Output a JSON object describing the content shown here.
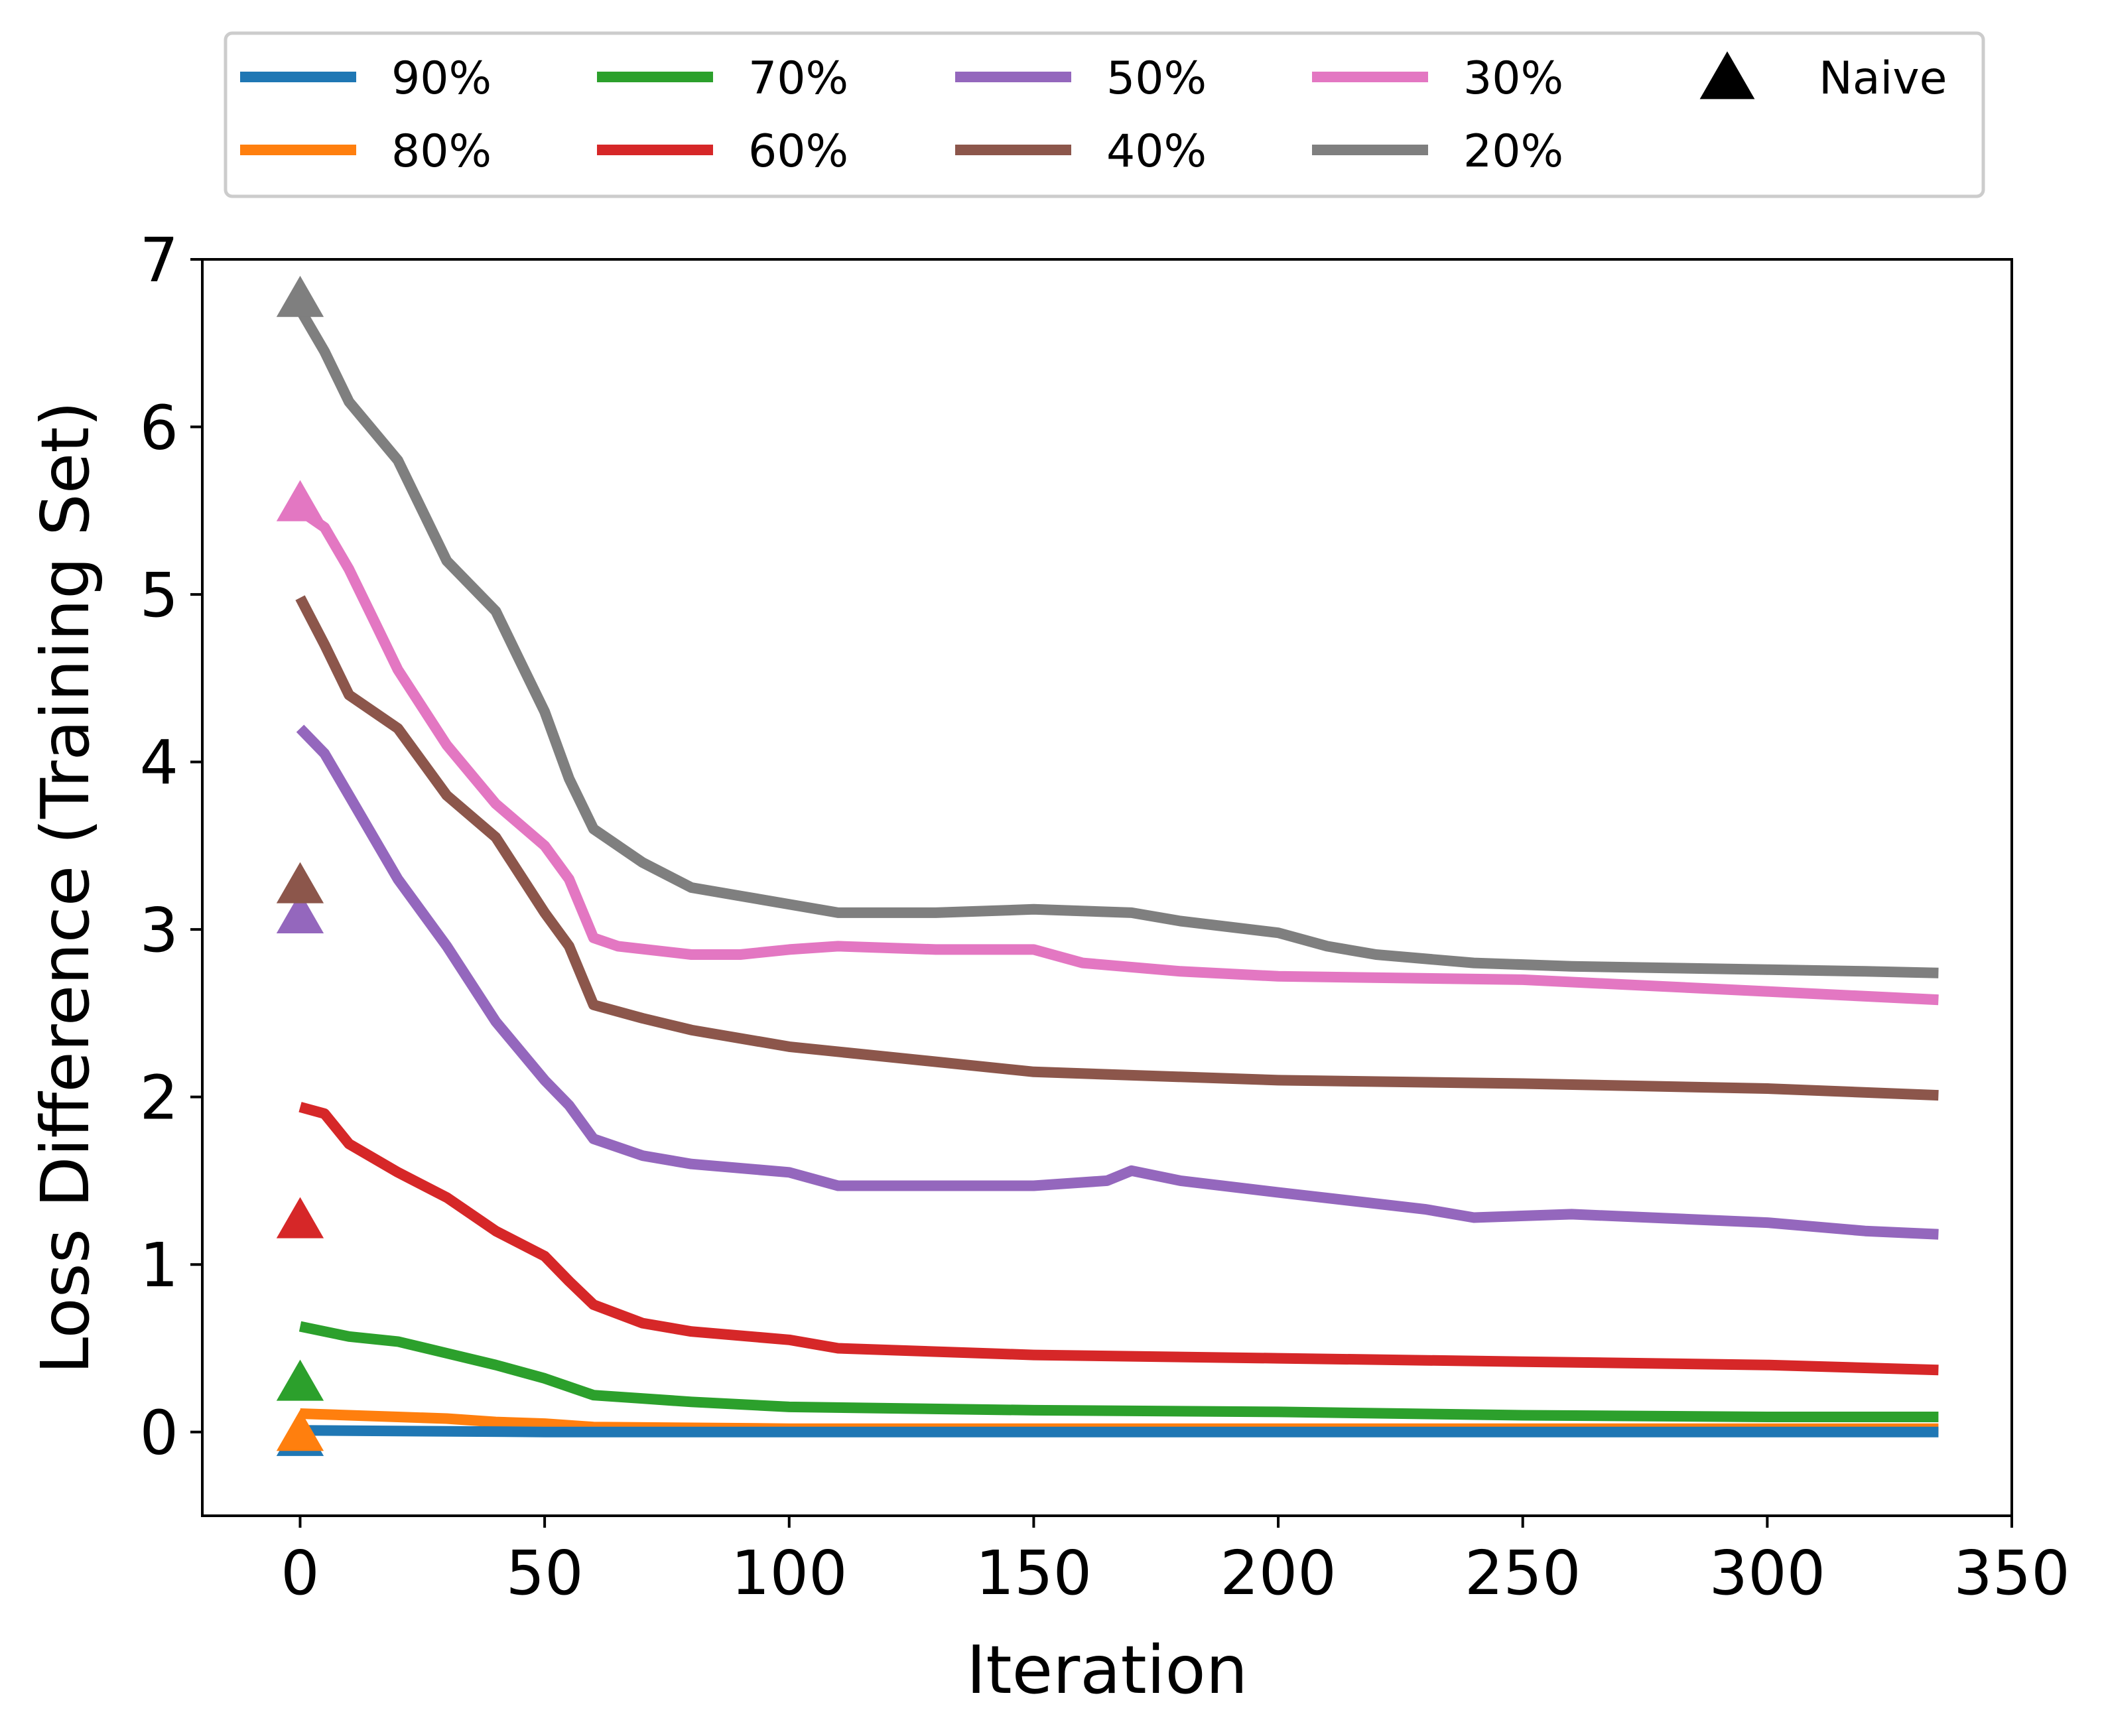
{
  "chart_data": {
    "type": "line",
    "xlabel": "Iteration",
    "ylabel": "Loss Difference (Training Set)",
    "xlim": [
      -20,
      350
    ],
    "ylim": [
      -0.5,
      7
    ],
    "xticks": [
      0,
      50,
      100,
      150,
      200,
      250,
      300,
      350
    ],
    "yticks": [
      0,
      1,
      2,
      3,
      4,
      5,
      6,
      7
    ],
    "grid": false,
    "legend_position": "top, outside plot",
    "series": [
      {
        "name": "90%",
        "color": "#1f77b4",
        "x": [
          0,
          50,
          60,
          100,
          200,
          300,
          335
        ],
        "y": [
          0.01,
          0.0,
          0.0,
          0.0,
          0.0,
          0.0,
          0.0
        ]
      },
      {
        "name": "80%",
        "color": "#ff7f0e",
        "x": [
          0,
          10,
          20,
          30,
          40,
          50,
          60,
          100,
          200,
          300,
          335
        ],
        "y": [
          0.11,
          0.1,
          0.09,
          0.08,
          0.06,
          0.05,
          0.03,
          0.02,
          0.02,
          0.02,
          0.02
        ]
      },
      {
        "name": "70%",
        "color": "#2ca02c",
        "x": [
          0,
          5,
          10,
          20,
          30,
          40,
          50,
          60,
          70,
          80,
          100,
          150,
          200,
          250,
          300,
          335
        ],
        "y": [
          0.63,
          0.6,
          0.57,
          0.54,
          0.47,
          0.4,
          0.32,
          0.22,
          0.2,
          0.18,
          0.15,
          0.13,
          0.12,
          0.1,
          0.09,
          0.09
        ]
      },
      {
        "name": "60%",
        "color": "#d62728",
        "x": [
          0,
          5,
          10,
          20,
          30,
          40,
          50,
          55,
          60,
          70,
          80,
          100,
          110,
          150,
          200,
          250,
          300,
          335
        ],
        "y": [
          1.94,
          1.9,
          1.72,
          1.55,
          1.4,
          1.2,
          1.05,
          0.9,
          0.76,
          0.65,
          0.6,
          0.55,
          0.5,
          0.46,
          0.44,
          0.42,
          0.4,
          0.37
        ]
      },
      {
        "name": "50%",
        "color": "#9467bd",
        "x": [
          0,
          5,
          10,
          20,
          30,
          40,
          50,
          55,
          60,
          70,
          80,
          100,
          110,
          130,
          150,
          165,
          170,
          180,
          200,
          230,
          240,
          260,
          300,
          320,
          335
        ],
        "y": [
          4.2,
          4.05,
          3.8,
          3.3,
          2.9,
          2.45,
          2.1,
          1.95,
          1.75,
          1.65,
          1.6,
          1.55,
          1.47,
          1.47,
          1.47,
          1.5,
          1.56,
          1.5,
          1.43,
          1.33,
          1.28,
          1.3,
          1.25,
          1.2,
          1.18
        ]
      },
      {
        "name": "40%",
        "color": "#8c564b",
        "x": [
          0,
          5,
          10,
          20,
          30,
          40,
          50,
          55,
          60,
          70,
          80,
          100,
          150,
          200,
          250,
          300,
          335
        ],
        "y": [
          4.98,
          4.7,
          4.4,
          4.2,
          3.8,
          3.55,
          3.1,
          2.9,
          2.55,
          2.47,
          2.4,
          2.3,
          2.15,
          2.1,
          2.08,
          2.05,
          2.01
        ]
      },
      {
        "name": "30%",
        "color": "#e377c2",
        "x": [
          0,
          5,
          10,
          15,
          20,
          30,
          40,
          50,
          55,
          60,
          65,
          80,
          90,
          100,
          110,
          130,
          150,
          160,
          180,
          200,
          250,
          300,
          335
        ],
        "y": [
          5.5,
          5.4,
          5.15,
          4.85,
          4.55,
          4.1,
          3.75,
          3.5,
          3.3,
          2.95,
          2.9,
          2.85,
          2.85,
          2.88,
          2.9,
          2.88,
          2.88,
          2.8,
          2.75,
          2.72,
          2.7,
          2.63,
          2.58
        ]
      },
      {
        "name": "20%",
        "color": "#7f7f7f",
        "x": [
          0,
          5,
          10,
          20,
          30,
          40,
          45,
          50,
          55,
          60,
          65,
          70,
          80,
          90,
          100,
          110,
          130,
          150,
          170,
          180,
          200,
          210,
          220,
          240,
          260,
          280,
          300,
          320,
          335
        ],
        "y": [
          6.7,
          6.45,
          6.15,
          5.8,
          5.2,
          4.9,
          4.6,
          4.3,
          3.9,
          3.6,
          3.5,
          3.4,
          3.25,
          3.2,
          3.15,
          3.1,
          3.1,
          3.12,
          3.1,
          3.05,
          2.98,
          2.9,
          2.85,
          2.8,
          2.78,
          2.77,
          2.76,
          2.75,
          2.74
        ]
      }
    ],
    "naive": {
      "name": "Naive",
      "marker": "triangle",
      "legend_color": "#000000",
      "points": [
        {
          "series": "90%",
          "x": 0,
          "y": -0.05,
          "color": "#1f77b4"
        },
        {
          "series": "80%",
          "x": 0,
          "y": -0.02,
          "color": "#ff7f0e"
        },
        {
          "series": "70%",
          "x": 0,
          "y": 0.28,
          "color": "#2ca02c"
        },
        {
          "series": "60%",
          "x": 0,
          "y": 1.25,
          "color": "#d62728"
        },
        {
          "series": "50%",
          "x": 0,
          "y": 3.07,
          "color": "#9467bd"
        },
        {
          "series": "40%",
          "x": 0,
          "y": 3.25,
          "color": "#8c564b"
        },
        {
          "series": "30%",
          "x": 0,
          "y": 5.53,
          "color": "#e377c2"
        },
        {
          "series": "20%",
          "x": 0,
          "y": 6.75,
          "color": "#7f7f7f"
        }
      ]
    }
  }
}
